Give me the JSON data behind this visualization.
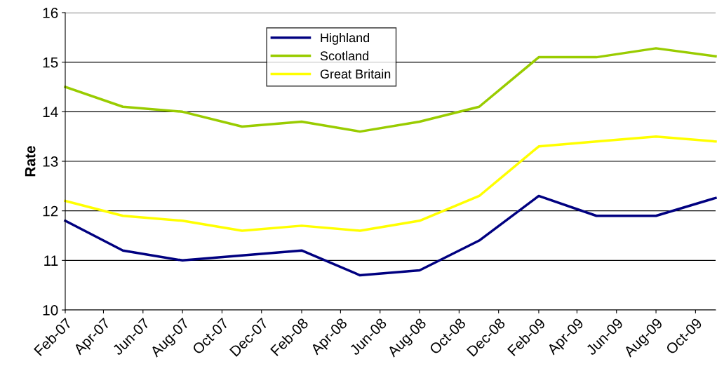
{
  "chart_data": {
    "type": "line",
    "ylabel": "Rate",
    "x": [
      "2007-02",
      "2007-05",
      "2007-08",
      "2007-11",
      "2008-02",
      "2008-05",
      "2008-08",
      "2008-11",
      "2009-02",
      "2009-05",
      "2009-08",
      "2009-11"
    ],
    "series": [
      {
        "name": "Highland",
        "color": "#000080",
        "values": [
          11.8,
          11.2,
          11.0,
          11.1,
          11.2,
          10.7,
          10.8,
          11.4,
          12.3,
          11.9,
          11.9,
          12.26
        ]
      },
      {
        "name": "Scotland",
        "color": "#99cc00",
        "values": [
          14.5,
          14.1,
          14.0,
          13.7,
          13.8,
          13.6,
          13.8,
          14.1,
          15.1,
          15.1,
          15.28,
          15.12
        ]
      },
      {
        "name": "Great Britain",
        "color": "#ffff00",
        "values": [
          12.2,
          11.9,
          11.8,
          11.6,
          11.7,
          11.6,
          11.8,
          12.3,
          13.3,
          13.4,
          13.5,
          13.4
        ]
      }
    ],
    "xlim": [
      "2007-02",
      "2009-11"
    ],
    "xticks": [
      {
        "value": "2007-02",
        "label": "Feb-07"
      },
      {
        "value": "2007-04",
        "label": "Apr-07"
      },
      {
        "value": "2007-06",
        "label": "Jun-07"
      },
      {
        "value": "2007-08",
        "label": "Aug-07"
      },
      {
        "value": "2007-10",
        "label": "Oct-07"
      },
      {
        "value": "2007-12",
        "label": "Dec-07"
      },
      {
        "value": "2008-02",
        "label": "Feb-08"
      },
      {
        "value": "2008-04",
        "label": "Apr-08"
      },
      {
        "value": "2008-06",
        "label": "Jun-08"
      },
      {
        "value": "2008-08",
        "label": "Aug-08"
      },
      {
        "value": "2008-10",
        "label": "Oct-08"
      },
      {
        "value": "2008-12",
        "label": "Dec-08"
      },
      {
        "value": "2009-02",
        "label": "Feb-09"
      },
      {
        "value": "2009-04",
        "label": "Apr-09"
      },
      {
        "value": "2009-06",
        "label": "Jun-09"
      },
      {
        "value": "2009-08",
        "label": "Aug-09"
      },
      {
        "value": "2009-10",
        "label": "Oct-09"
      }
    ],
    "ylim": [
      10,
      16
    ],
    "yticks": [
      10,
      11,
      12,
      13,
      14,
      15,
      16
    ],
    "grid": "y",
    "legend": "top",
    "marker": "none",
    "line_style": "solid"
  }
}
